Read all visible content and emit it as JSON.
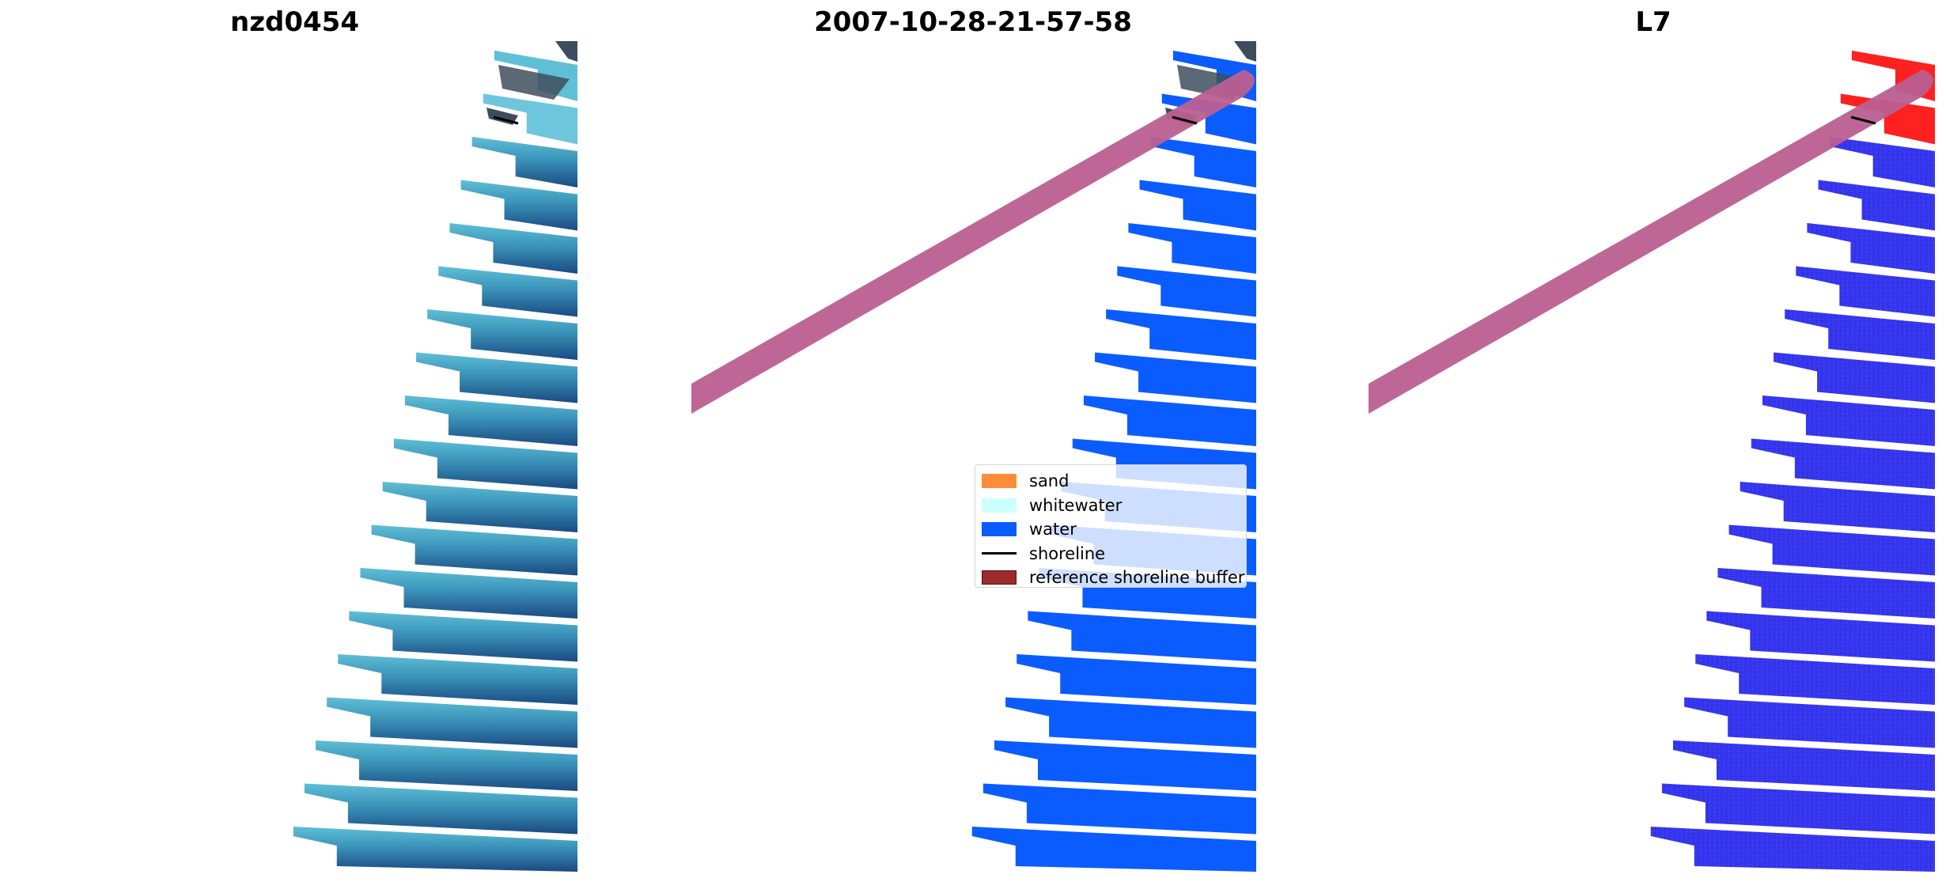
{
  "panels": [
    {
      "title": "nzd0454"
    },
    {
      "title": "2007-10-28-21-57-58"
    },
    {
      "title": "L7"
    }
  ],
  "legend": {
    "items": [
      {
        "label": "sand",
        "type": "patch",
        "color": "#ff8c3a"
      },
      {
        "label": "whitewater",
        "type": "patch",
        "color": "#ccffff"
      },
      {
        "label": "water",
        "type": "patch",
        "color": "#0a5cff"
      },
      {
        "label": "shoreline",
        "type": "line",
        "color": "#000000"
      },
      {
        "label": "reference shoreline buffer",
        "type": "patch",
        "color": "#9b2c2c"
      }
    ]
  },
  "colors": {
    "rgb_water_light": "#5fbfd6",
    "rgb_water_dark": "#1a4a82",
    "class_water": "#0a5cff",
    "l7_water": "#3535ee",
    "l7_red": "#ff2020",
    "buffer": "#bb5f91",
    "dark_cloud": "#3e4d5e"
  }
}
